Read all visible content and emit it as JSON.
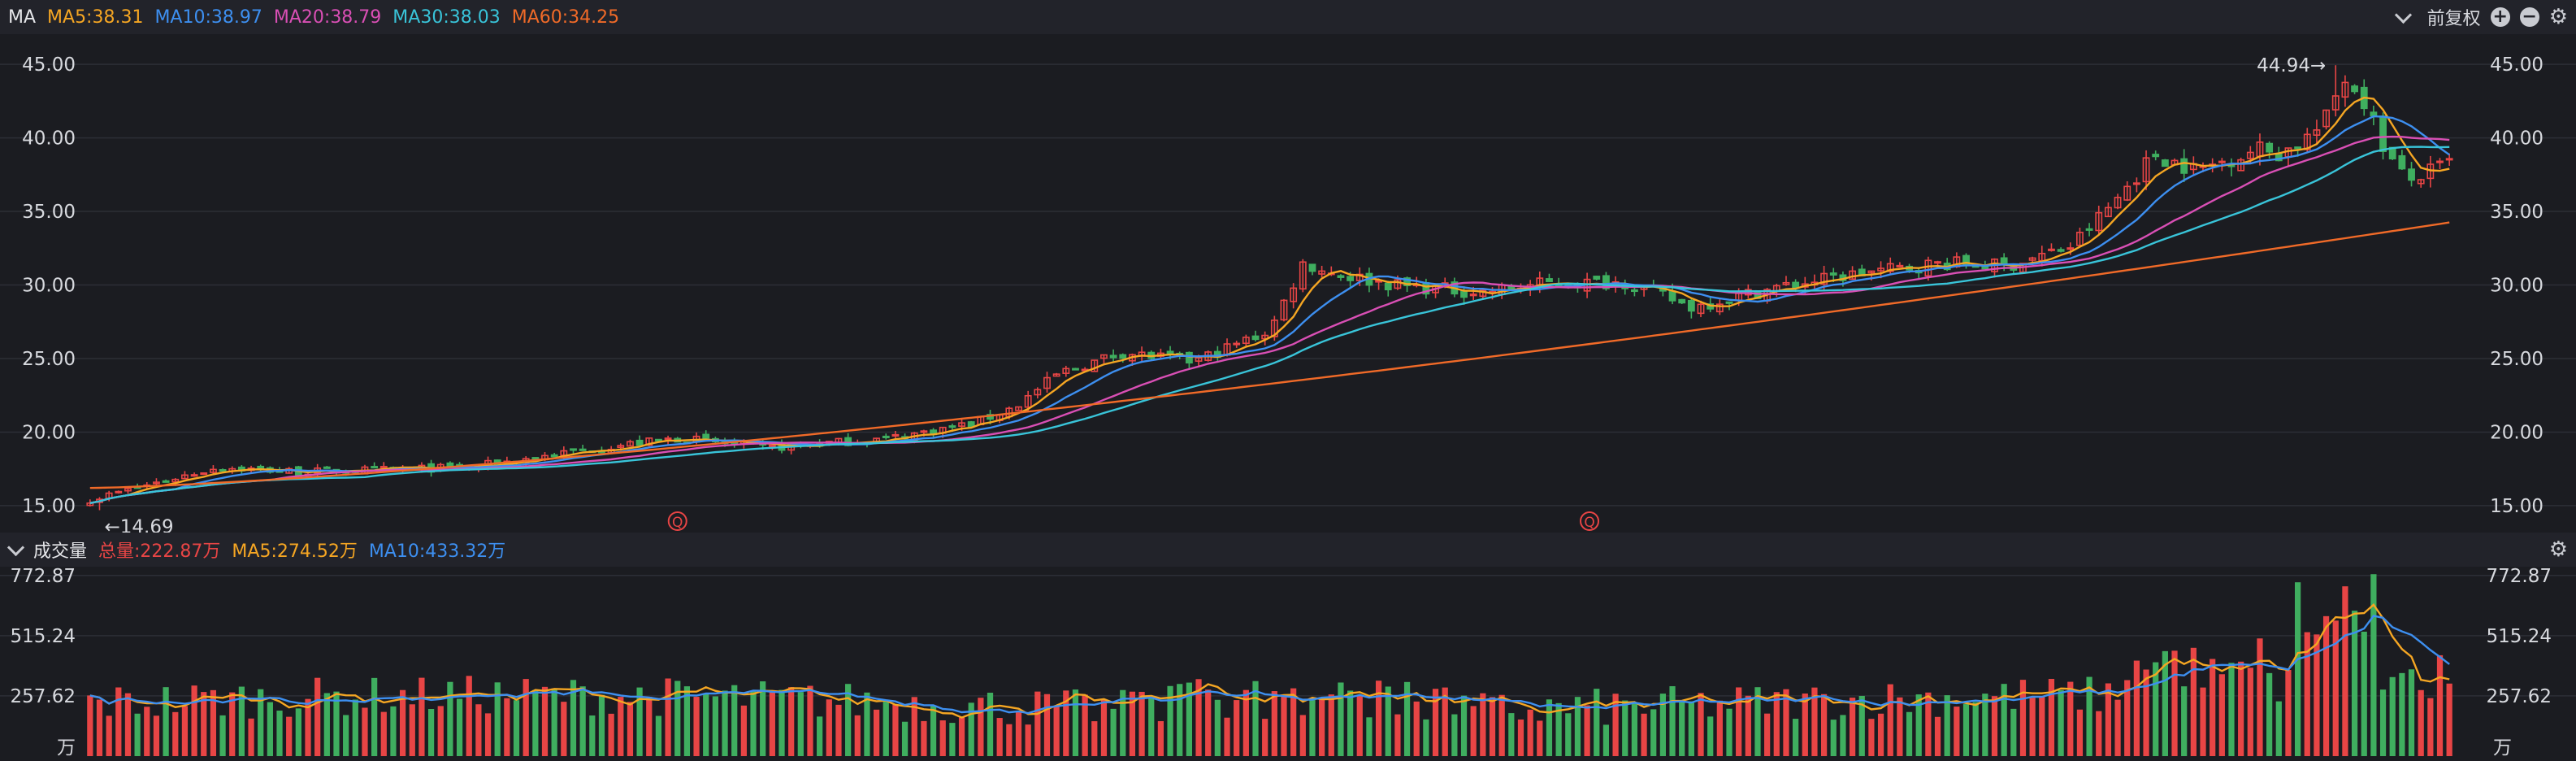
{
  "price_header": {
    "name": "MA",
    "ma5": "MA5:38.31",
    "ma10": "MA10:38.97",
    "ma20": "MA20:38.79",
    "ma30": "MA30:38.03",
    "ma60": "MA60:34.25",
    "adjust": "前复权"
  },
  "volume_header": {
    "name": "成交量",
    "total": "总量:222.87万",
    "ma5": "MA5:274.52万",
    "ma10": "MA10:433.32万"
  },
  "colors": {
    "up": "#e84545",
    "down": "#3fae5f",
    "ma5": "#f5a623",
    "ma10": "#3d8ff0",
    "ma20": "#d94fb5",
    "ma30": "#39c4d9",
    "ma60": "#f06a28",
    "grid": "#2c2e36"
  },
  "chart_data": [
    {
      "type": "candlestick",
      "y_ticks": [
        "45.00",
        "40.00",
        "35.00",
        "30.00",
        "25.00",
        "20.00",
        "15.00"
      ],
      "ylim": [
        14.0,
        46.5
      ],
      "n_bars": 250,
      "annotations": {
        "high_label": "44.94→",
        "low_label": "←14.69",
        "marker": "Q"
      },
      "close_anchors": [
        [
          0,
          15.4
        ],
        [
          30,
          17.6
        ],
        [
          50,
          17.3
        ],
        [
          90,
          17.6
        ],
        [
          120,
          18.9
        ],
        [
          140,
          19.6
        ],
        [
          160,
          18.9
        ],
        [
          190,
          19.6
        ],
        [
          210,
          20.6
        ],
        [
          220,
          21.8
        ],
        [
          230,
          24.0
        ],
        [
          245,
          25.4
        ],
        [
          262,
          24.8
        ],
        [
          280,
          26.9
        ],
        [
          288,
          31.5
        ],
        [
          295,
          30.8
        ],
        [
          310,
          30.0
        ],
        [
          330,
          29.5
        ],
        [
          345,
          30.1
        ],
        [
          365,
          30.2
        ],
        [
          380,
          28.5
        ],
        [
          400,
          29.8
        ],
        [
          420,
          30.8
        ],
        [
          440,
          31.5
        ],
        [
          455,
          31.3
        ],
        [
          470,
          32.6
        ],
        [
          480,
          35.5
        ],
        [
          490,
          38.9
        ],
        [
          500,
          37.8
        ],
        [
          515,
          39.3
        ],
        [
          520,
          38.9
        ],
        [
          530,
          40.8
        ],
        [
          535,
          44.2
        ],
        [
          540,
          42.5
        ],
        [
          545,
          39.0
        ],
        [
          550,
          37.0
        ],
        [
          560,
          38.3
        ]
      ],
      "ma60_range": [
        16.2,
        34.25
      ]
    },
    {
      "type": "bar",
      "y_ticks": [
        "772.87",
        "515.24",
        "257.62"
      ],
      "unit": "万",
      "ylim": [
        0,
        800
      ]
    }
  ]
}
